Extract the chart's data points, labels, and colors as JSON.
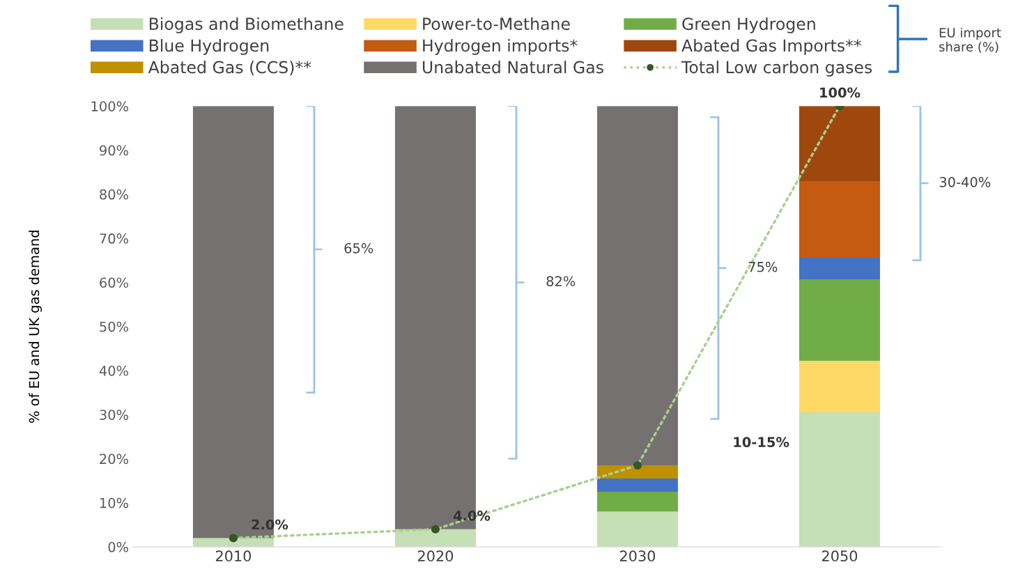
{
  "chart_data": {
    "type": "bar",
    "stacked": true,
    "ylabel": "% of EU and UK gas demand",
    "categories": [
      "2010",
      "2020",
      "2030",
      "2050"
    ],
    "series": [
      {
        "name": "Biogas and Biomethane",
        "color": "#c5e0b4",
        "values": [
          2,
          4,
          8,
          30.5
        ]
      },
      {
        "name": "Power-to-Methane",
        "color": "#ffd966",
        "values": [
          0,
          0,
          0,
          11.7
        ]
      },
      {
        "name": "Green Hydrogen",
        "color": "#70ad47",
        "values": [
          0,
          0,
          4.5,
          18.5
        ]
      },
      {
        "name": "Blue Hydrogen",
        "color": "#4472c4",
        "values": [
          0,
          0,
          3,
          4.9
        ]
      },
      {
        "name": "Hydrogen imports*",
        "color": "#c55a11",
        "values": [
          0,
          0,
          0,
          17.4
        ]
      },
      {
        "name": "Abated Gas Imports**",
        "color": "#9e480e",
        "values": [
          0,
          0,
          0,
          17
        ]
      },
      {
        "name": "Abated Gas (CCS)**",
        "color": "#bf9000",
        "values": [
          0,
          0,
          3,
          0
        ]
      },
      {
        "name": "Unabated Natural Gas",
        "color": "#767171",
        "values": [
          98,
          96,
          81.5,
          0
        ]
      },
      {
        "name": "Total Low carbon gases",
        "type": "line",
        "color": "#a9d18e",
        "colors": [
          "#375623",
          "#375623",
          "#375623",
          "#375623"
        ],
        "marker": "circle",
        "line_style": "dotted",
        "values": [
          2,
          4,
          18.5,
          100
        ],
        "value_labels": [
          "2.0%",
          "4.0%",
          null,
          "100%"
        ]
      }
    ],
    "ylim": [
      0,
      100
    ],
    "yticks": [
      {
        "value": 0,
        "label": "0%"
      },
      {
        "value": 10,
        "label": "10%"
      },
      {
        "value": 20,
        "label": "20%"
      },
      {
        "value": 30,
        "label": "30%"
      },
      {
        "value": 40,
        "label": "40%"
      },
      {
        "value": 50,
        "label": "50%"
      },
      {
        "value": 60,
        "label": "60%"
      },
      {
        "value": 70,
        "label": "70%"
      },
      {
        "value": 80,
        "label": "80%"
      },
      {
        "value": 90,
        "label": "90%"
      },
      {
        "value": 100,
        "label": "100%"
      }
    ],
    "grid": false,
    "legend": "top",
    "annotations": [
      "65%",
      "82%",
      "75%",
      "30-40%",
      "10-15%",
      "EU import share (%)"
    ]
  }
}
